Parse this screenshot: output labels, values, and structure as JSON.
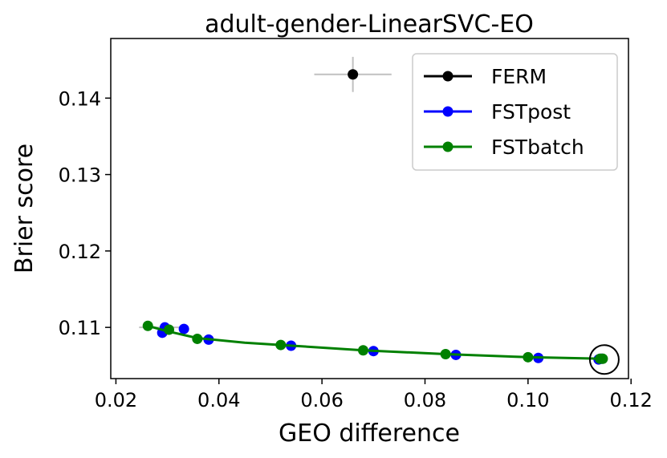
{
  "chart_data": {
    "type": "scatter",
    "title": "adult-gender-LinearSVC-EO",
    "xlabel": "GEO difference",
    "ylabel": "Brier score",
    "xlim": [
      0.019,
      0.1195
    ],
    "ylim": [
      0.1033,
      0.1478
    ],
    "xticks": [
      0.02,
      0.04,
      0.06,
      0.08,
      0.1,
      0.12
    ],
    "xtick_labels": [
      "0.02",
      "0.04",
      "0.06",
      "0.08",
      "0.10",
      "0.12"
    ],
    "yticks": [
      0.11,
      0.12,
      0.13,
      0.14
    ],
    "ytick_labels": [
      "0.11",
      "0.12",
      "0.13",
      "0.14"
    ],
    "legend_position": "top-right",
    "series": [
      {
        "name": "FERM",
        "color": "#000000",
        "points": [
          {
            "x": 0.066,
            "y": 0.1431,
            "xerr": 0.0075,
            "yerr": 0.0023
          }
        ]
      },
      {
        "name": "FSTpost",
        "color": "#0000ff",
        "points": [
          {
            "x": 0.029,
            "y": 0.1093
          },
          {
            "x": 0.0295,
            "y": 0.11
          },
          {
            "x": 0.0332,
            "y": 0.1098
          },
          {
            "x": 0.038,
            "y": 0.1084
          },
          {
            "x": 0.054,
            "y": 0.1076
          },
          {
            "x": 0.07,
            "y": 0.1069
          },
          {
            "x": 0.086,
            "y": 0.1064
          },
          {
            "x": 0.102,
            "y": 0.106
          },
          {
            "x": 0.1137,
            "y": 0.1058
          },
          {
            "x": 0.1143,
            "y": 0.1059
          }
        ]
      },
      {
        "name": "FSTbatch",
        "color": "#008000",
        "points": [
          {
            "x": 0.0262,
            "y": 0.1102
          },
          {
            "x": 0.0303,
            "y": 0.1097
          },
          {
            "x": 0.0358,
            "y": 0.1085
          },
          {
            "x": 0.052,
            "y": 0.1077
          },
          {
            "x": 0.068,
            "y": 0.107
          },
          {
            "x": 0.084,
            "y": 0.1065
          },
          {
            "x": 0.1,
            "y": 0.1061
          },
          {
            "x": 0.114,
            "y": 0.1059
          },
          {
            "x": 0.1145,
            "y": 0.1059
          }
        ],
        "curve": [
          {
            "x": 0.0262,
            "y": 0.1102
          },
          {
            "x": 0.03,
            "y": 0.1095
          },
          {
            "x": 0.0358,
            "y": 0.1086
          },
          {
            "x": 0.045,
            "y": 0.108
          },
          {
            "x": 0.052,
            "y": 0.1077
          },
          {
            "x": 0.068,
            "y": 0.107
          },
          {
            "x": 0.084,
            "y": 0.1065
          },
          {
            "x": 0.1,
            "y": 0.1061
          },
          {
            "x": 0.1145,
            "y": 0.1059
          }
        ]
      }
    ],
    "error_bars": [
      {
        "x": 0.029,
        "y": 0.11,
        "xerr": 0.0045,
        "color": "#c0c0c0"
      }
    ],
    "highlight": {
      "x": 0.1145,
      "y": 0.1059,
      "color": "#000000"
    }
  }
}
